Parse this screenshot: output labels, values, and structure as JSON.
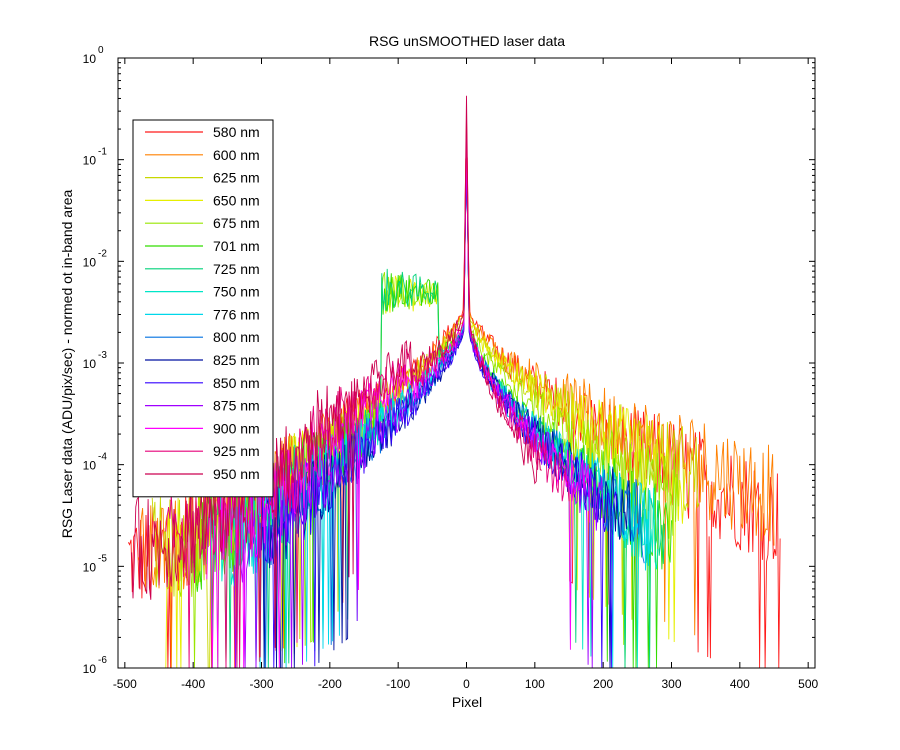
{
  "chart_data": {
    "type": "line",
    "title": "RSG unSMOOTHED laser data",
    "xlabel": "Pixel",
    "ylabel": "RSG Laser data (ADU/pix/sec) - normed ot in-band area",
    "xlim": [
      -510,
      510
    ],
    "ylim": [
      1e-06,
      1
    ],
    "yscale": "log",
    "grid": false,
    "legend_position": "top-left",
    "x_ticks": [
      -500,
      -400,
      -300,
      -200,
      -100,
      0,
      100,
      200,
      300,
      400,
      500
    ],
    "x_tick_labels": [
      "-500",
      "-400",
      "-300",
      "-200",
      "-100",
      "0",
      "100",
      "200",
      "300",
      "400",
      "500"
    ],
    "y_ticks": [
      {
        "value": 1e-06,
        "base": "10",
        "exp": "-6"
      },
      {
        "value": 1e-05,
        "base": "10",
        "exp": "-5"
      },
      {
        "value": 0.0001,
        "base": "10",
        "exp": "-4"
      },
      {
        "value": 0.001,
        "base": "10",
        "exp": "-3"
      },
      {
        "value": 0.01,
        "base": "10",
        "exp": "-2"
      },
      {
        "value": 0.1,
        "base": "10",
        "exp": "-1"
      },
      {
        "value": 1,
        "base": "10",
        "exp": "0"
      }
    ],
    "series": [
      {
        "name": "580 nm",
        "color": "#ff1a1a",
        "peak": 0.3,
        "core_level": 0.0035,
        "left_floor": 1.2e-05,
        "left_extent": -495,
        "right_floor": 3e-05,
        "right_extent": 460
      },
      {
        "name": "600 nm",
        "color": "#ff8000",
        "peak": 0.25,
        "core_level": 0.0032,
        "left_floor": 1.3e-05,
        "left_extent": -480,
        "right_floor": 5e-05,
        "right_extent": 450
      },
      {
        "name": "625 nm",
        "color": "#c8d800",
        "peak": 0.2,
        "core_level": 0.003,
        "left_floor": 1.5e-05,
        "left_extent": -460,
        "right_floor": 7e-05,
        "right_extent": 340
      },
      {
        "name": "650 nm",
        "color": "#e6ef00",
        "peak": 0.18,
        "core_level": 0.0028,
        "left_floor": 1.5e-05,
        "left_extent": -440,
        "right_floor": 8e-05,
        "right_extent": 320
      },
      {
        "name": "675 nm",
        "color": "#99e600",
        "peak": 0.16,
        "core_level": 0.0026,
        "left_floor": 1.6e-05,
        "left_extent": -420,
        "right_floor": 4e-05,
        "right_extent": 310
      },
      {
        "name": "701 nm",
        "color": "#33dd00",
        "peak": 0.15,
        "core_level": 0.0025,
        "left_floor": 1.8e-05,
        "left_extent": -400,
        "right_floor": 2e-05,
        "right_extent": 300
      },
      {
        "name": "725 nm",
        "color": "#00d27a",
        "peak": 0.14,
        "core_level": 0.0024,
        "left_floor": 2e-05,
        "left_extent": -380,
        "right_floor": 1.8e-05,
        "right_extent": 290
      },
      {
        "name": "750 nm",
        "color": "#00e6c8",
        "peak": 0.13,
        "core_level": 0.0023,
        "left_floor": 2e-05,
        "left_extent": -360,
        "right_floor": 2e-05,
        "right_extent": 280
      },
      {
        "name": "776 nm",
        "color": "#00d7ea",
        "peak": 0.12,
        "core_level": 0.0022,
        "left_floor": 2.2e-05,
        "left_extent": -340,
        "right_floor": 2.2e-05,
        "right_extent": 270
      },
      {
        "name": "800 nm",
        "color": "#0070e0",
        "peak": 0.12,
        "core_level": 0.0022,
        "left_floor": 2.5e-05,
        "left_extent": -320,
        "right_floor": 2.5e-05,
        "right_extent": 260
      },
      {
        "name": "825 nm",
        "color": "#0010a0",
        "peak": 0.11,
        "core_level": 0.0021,
        "left_floor": 2.5e-05,
        "left_extent": -300,
        "right_floor": 3e-05,
        "right_extent": 240
      },
      {
        "name": "850 nm",
        "color": "#3300ff",
        "peak": 0.11,
        "core_level": 0.0021,
        "left_floor": 2.5e-05,
        "left_extent": -300,
        "right_floor": 3.5e-05,
        "right_extent": 220
      },
      {
        "name": "875 nm",
        "color": "#a000ff",
        "peak": 0.12,
        "core_level": 0.0022,
        "left_floor": 2.2e-05,
        "left_extent": -340,
        "right_floor": 4e-05,
        "right_extent": 200
      },
      {
        "name": "900 nm",
        "color": "#ff00ff",
        "peak": 0.15,
        "core_level": 0.0024,
        "left_floor": 2e-05,
        "left_extent": -380,
        "right_floor": 5e-05,
        "right_extent": 180
      },
      {
        "name": "925 nm",
        "color": "#e6007a",
        "peak": 0.2,
        "core_level": 0.0026,
        "left_floor": 1.8e-05,
        "left_extent": -440,
        "right_floor": 6e-05,
        "right_extent": 150
      },
      {
        "name": "950 nm",
        "color": "#cc0050",
        "peak": 0.4,
        "core_level": 0.003,
        "left_floor": 1.5e-05,
        "left_extent": -490,
        "right_floor": 8e-05,
        "right_extent": 110
      }
    ]
  }
}
